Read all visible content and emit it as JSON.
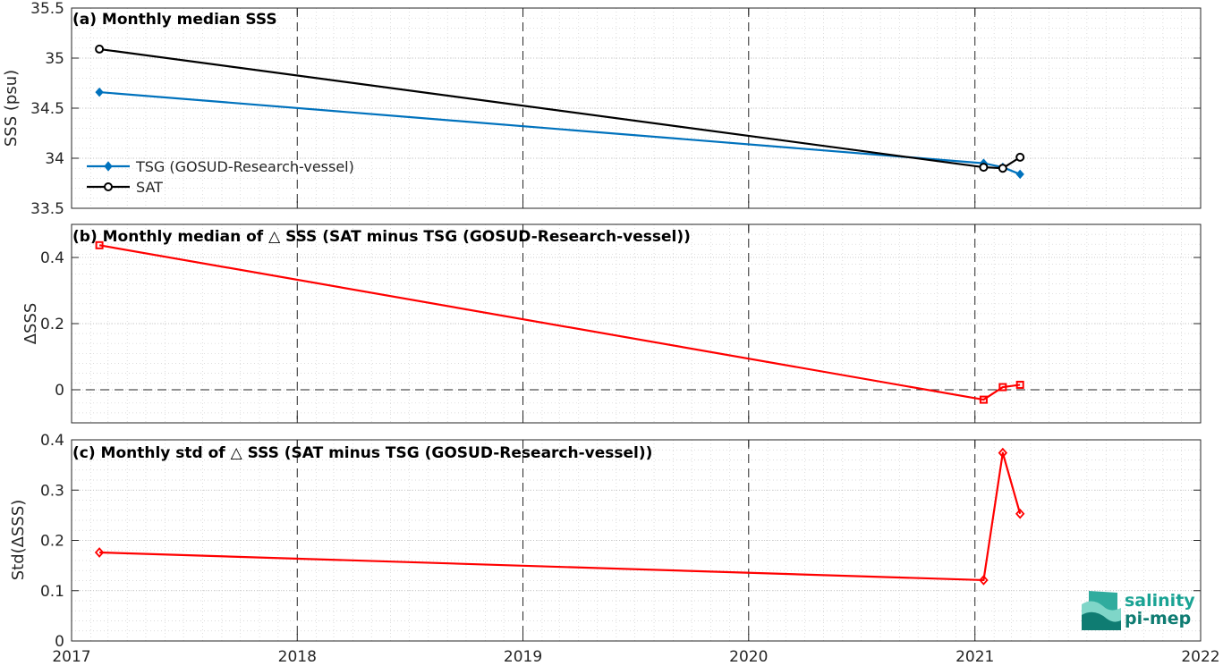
{
  "colors": {
    "tsg": "#0072bd",
    "sat": "#000000",
    "delta": "#ff0000",
    "logo": "#1aa394"
  },
  "chart_data": [
    {
      "type": "line",
      "title": "(a) Monthly median SSS",
      "ylabel": "SSS (psu)",
      "xlim": [
        "2017-01-01",
        "2022-01-01"
      ],
      "ylim": [
        33.5,
        35.5
      ],
      "yticks": [
        "33.5",
        "34",
        "34.5",
        "35",
        "35.5"
      ],
      "yticks_values": [
        33.5,
        34,
        34.5,
        35,
        35.5
      ],
      "legend": "middle-left",
      "grid": true,
      "series": [
        {
          "name": "TSG (GOSUD-Research-vessel)",
          "marker": "filled-diamond",
          "x": [
            "2017-02-15",
            "2021-01-15",
            "2021-02-15",
            "2021-03-15"
          ],
          "y": [
            34.66,
            33.95,
            33.91,
            33.84
          ]
        },
        {
          "name": "SAT",
          "marker": "circle",
          "x": [
            "2017-02-15",
            "2021-01-15",
            "2021-02-15",
            "2021-03-15"
          ],
          "y": [
            35.09,
            33.91,
            33.9,
            34.01
          ]
        }
      ]
    },
    {
      "type": "line",
      "title": "(b) Monthly median of △ SSS (SAT minus TSG (GOSUD-Research-vessel))",
      "ylabel": "ΔSSS",
      "xlim": [
        "2017-01-01",
        "2022-01-01"
      ],
      "ylim": [
        -0.1,
        0.5
      ],
      "yticks": [
        "0",
        "0.2",
        "0.4"
      ],
      "yticks_values": [
        0,
        0.2,
        0.4
      ],
      "reference_line_y": 0,
      "grid": true,
      "series": [
        {
          "marker": "square",
          "x": [
            "2017-02-15",
            "2021-01-15",
            "2021-02-15",
            "2021-03-15"
          ],
          "y": [
            0.437,
            -0.03,
            0.008,
            0.015
          ]
        }
      ]
    },
    {
      "type": "line",
      "title": "(c) Monthly std of △ SSS (SAT minus TSG (GOSUD-Research-vessel))",
      "ylabel": "Std(ΔSSS)",
      "xlim": [
        "2017-01-01",
        "2022-01-01"
      ],
      "ylim": [
        0,
        0.4
      ],
      "yticks": [
        "0",
        "0.1",
        "0.2",
        "0.3",
        "0.4"
      ],
      "yticks_values": [
        0,
        0.1,
        0.2,
        0.3,
        0.4
      ],
      "xticks": [
        "2017",
        "2018",
        "2019",
        "2020",
        "2021",
        "2022"
      ],
      "grid": true,
      "series": [
        {
          "marker": "diamond",
          "x": [
            "2017-02-15",
            "2021-01-15",
            "2021-02-15",
            "2021-03-15"
          ],
          "y": [
            0.176,
            0.121,
            0.374,
            0.253
          ]
        }
      ]
    }
  ],
  "logo": {
    "line1": "salinity",
    "line2": "pi-mep"
  }
}
